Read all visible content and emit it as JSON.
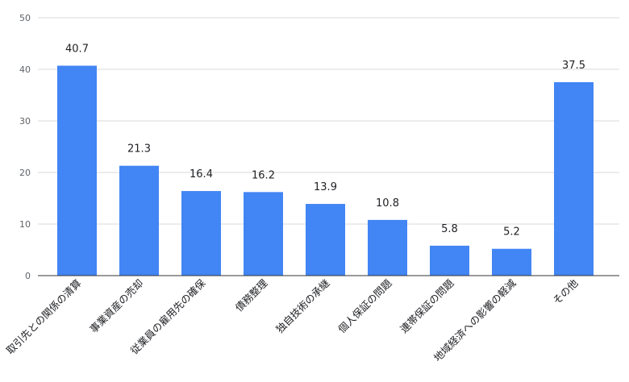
{
  "chart_data": {
    "type": "bar",
    "categories": [
      "取引先との関係の清算",
      "事業資産の売却",
      "従業員の雇用先の確保",
      "債務整理",
      "独自技術の承継",
      "個人保証の問題",
      "連帯保証の問題",
      "地域経済への影響の軽減",
      "その他"
    ],
    "values": [
      40.7,
      21.3,
      16.4,
      16.2,
      13.9,
      10.8,
      5.8,
      5.2,
      37.5
    ],
    "value_labels": [
      "40.7",
      "21.3",
      "16.4",
      "16.2",
      "13.9",
      "10.8",
      "5.8",
      "5.2",
      "37.5"
    ],
    "ylim": [
      0,
      50
    ],
    "yticks": [
      "0",
      "10",
      "20",
      "30",
      "40",
      "50"
    ],
    "ytick_values": [
      0,
      10,
      20,
      30,
      40,
      50
    ],
    "grid": true,
    "legend": "none",
    "title": "",
    "xlabel": "",
    "ylabel": "",
    "bar_color": "#4285f4"
  }
}
